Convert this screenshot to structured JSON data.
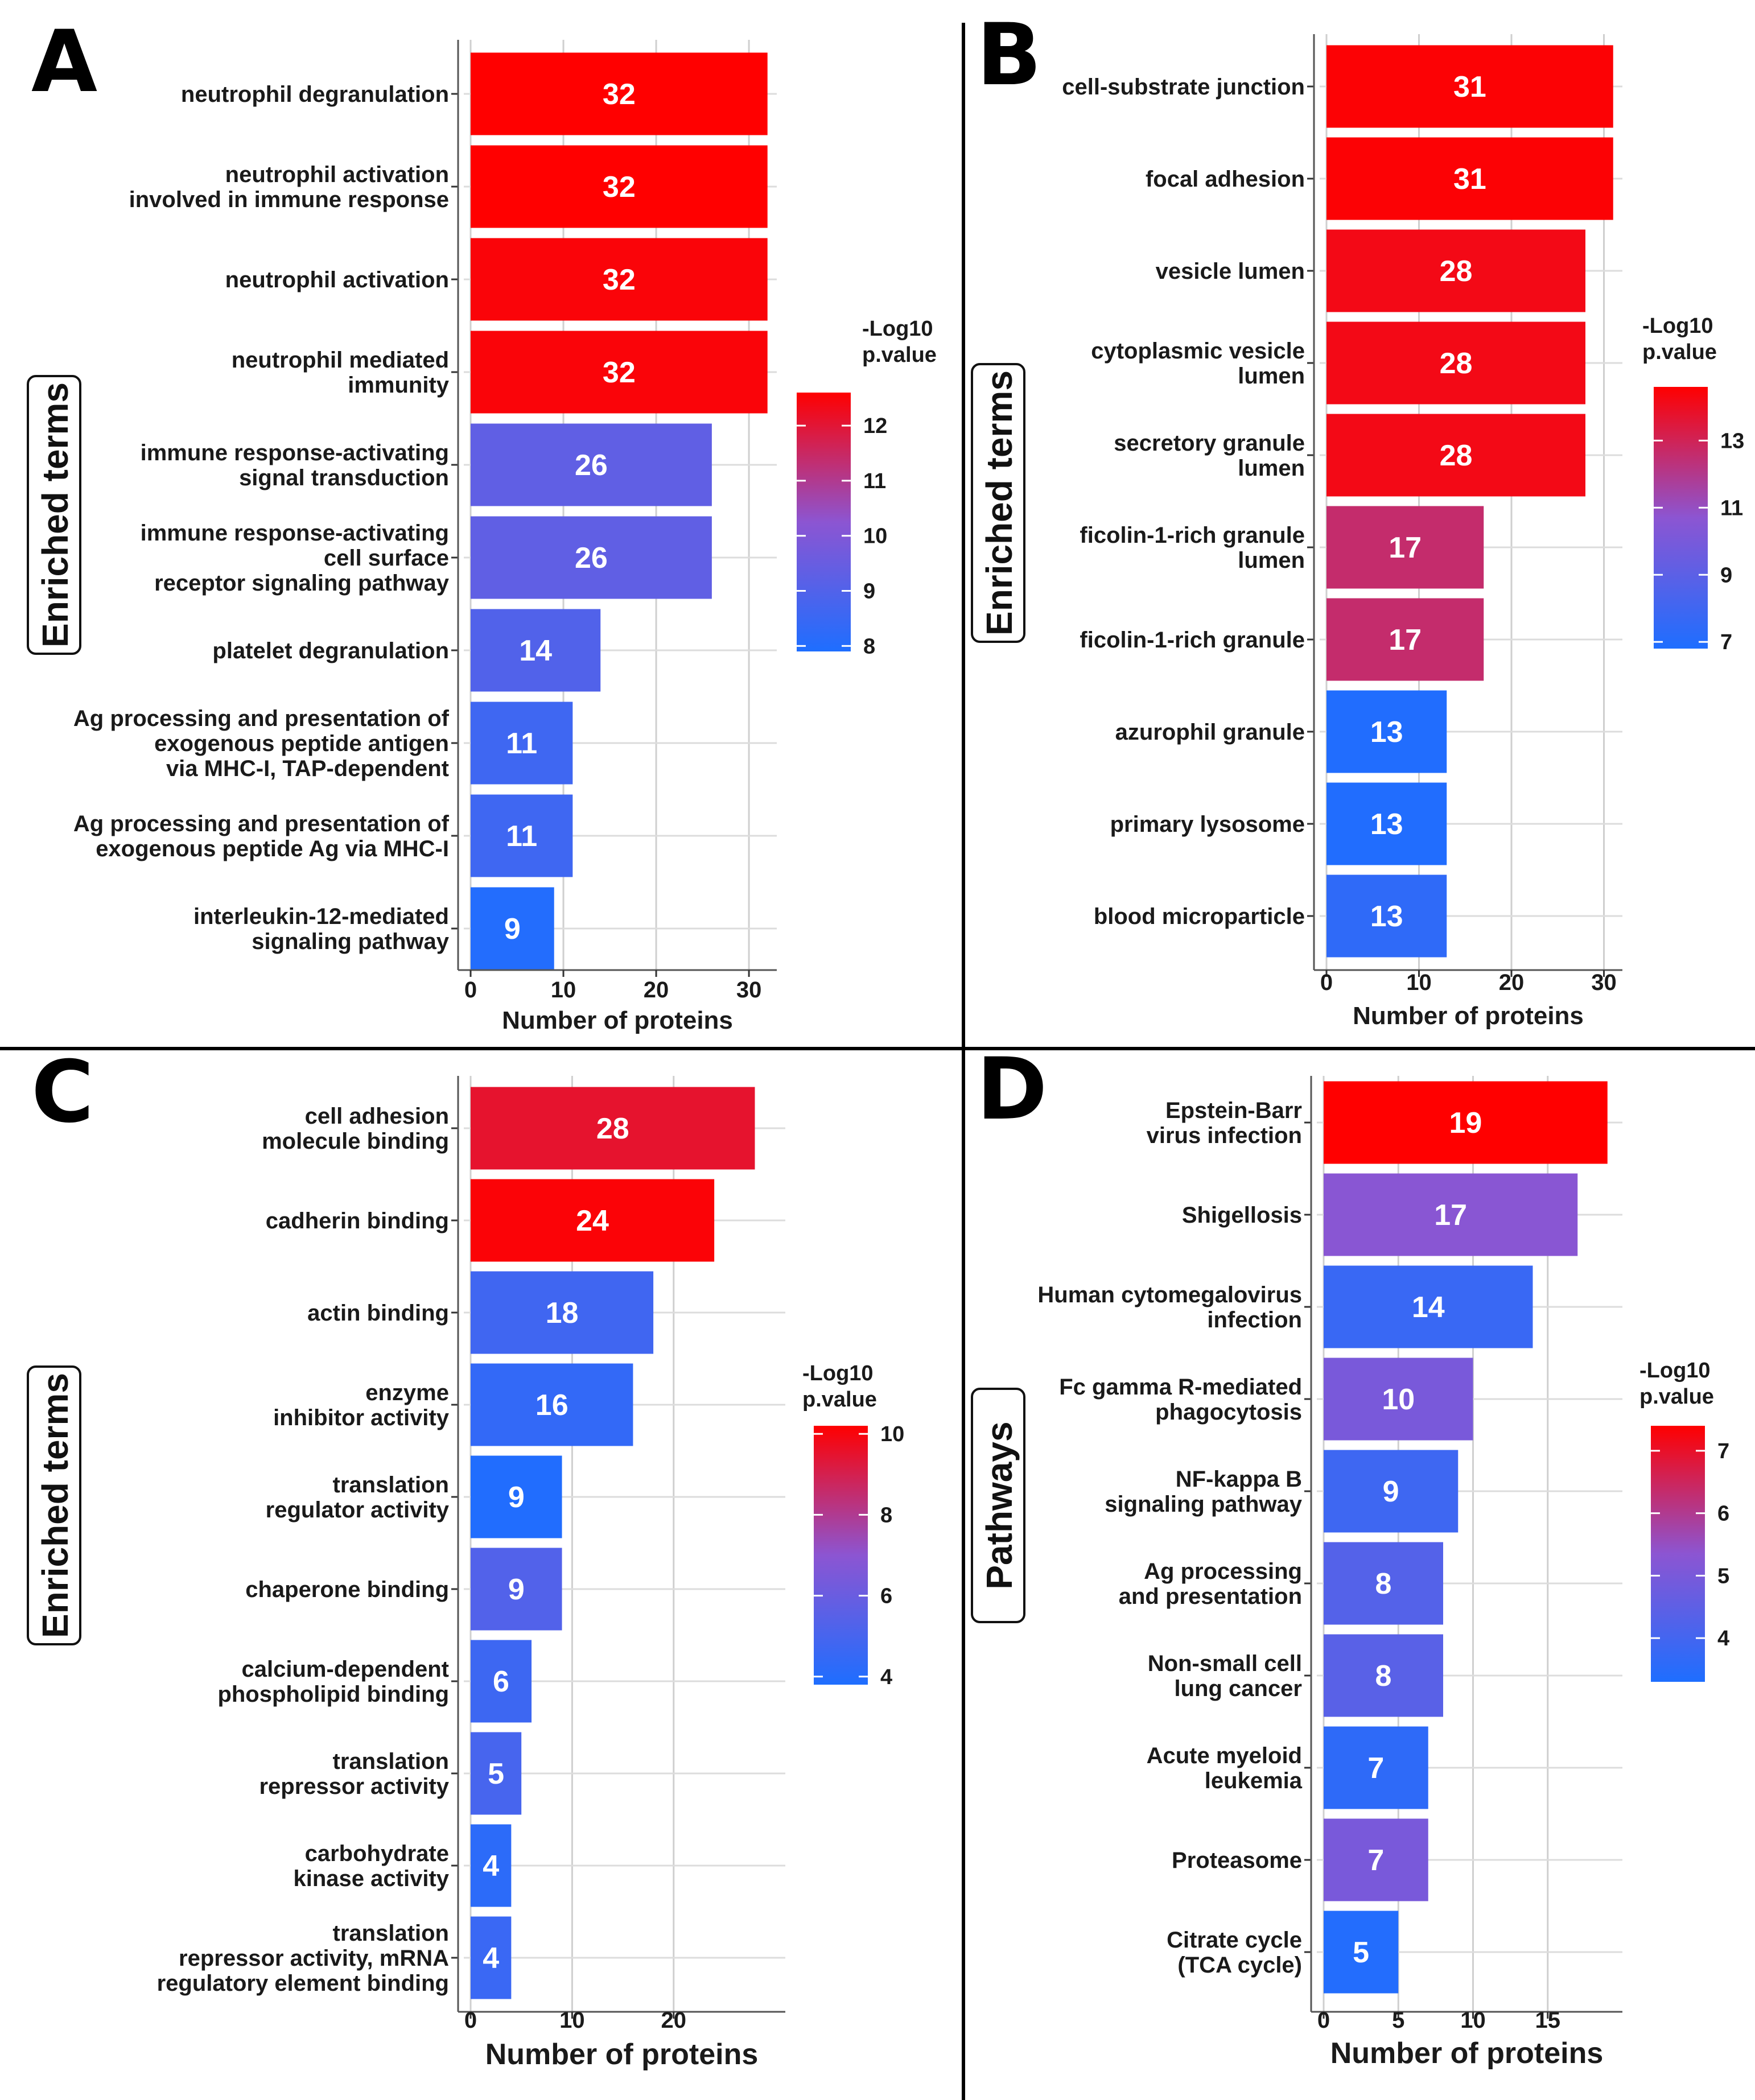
{
  "chart_data": [
    {
      "panel": "A",
      "type": "bar",
      "orientation": "horizontal",
      "ylabel": "Enriched terms",
      "xlabel": "Number of proteins",
      "xlim": [
        0,
        33
      ],
      "xticks": [
        0,
        10,
        20,
        30
      ],
      "legend": {
        "title": [
          "-Log10",
          "p.value"
        ],
        "ticks": [
          12,
          11,
          10,
          9,
          8
        ],
        "range": [
          7.9,
          12.6
        ]
      },
      "bars": [
        {
          "label": [
            "neutrophil degranulation"
          ],
          "value": 32,
          "logp": 12.6
        },
        {
          "label": [
            "neutrophil activation",
            "involved in immune response"
          ],
          "value": 32,
          "logp": 12.6
        },
        {
          "label": [
            "neutrophil activation"
          ],
          "value": 32,
          "logp": 12.5
        },
        {
          "label": [
            "neutrophil mediated",
            "immunity"
          ],
          "value": 32,
          "logp": 12.5
        },
        {
          "label": [
            "immune response-activating",
            "signal transduction"
          ],
          "value": 26,
          "logp": 9.3
        },
        {
          "label": [
            "immune response-activating",
            "cell surface",
            "receptor signaling pathway"
          ],
          "value": 26,
          "logp": 9.3
        },
        {
          "label": [
            "platelet degranulation"
          ],
          "value": 14,
          "logp": 9.0
        },
        {
          "label": [
            "Ag processing and presentation of",
            "exogenous peptide antigen",
            "via MHC-I, TAP-dependent"
          ],
          "value": 11,
          "logp": 8.6
        },
        {
          "label": [
            "Ag processing and presentation of",
            "exogenous peptide Ag via MHC-I"
          ],
          "value": 11,
          "logp": 8.6
        },
        {
          "label": [
            "interleukin-12-mediated",
            "signaling pathway"
          ],
          "value": 9,
          "logp": 8.0
        }
      ]
    },
    {
      "panel": "B",
      "type": "bar",
      "orientation": "horizontal",
      "ylabel": "Enriched terms",
      "xlabel": "Number of proteins",
      "xlim": [
        0,
        32
      ],
      "xticks": [
        0,
        10,
        20,
        30
      ],
      "legend": {
        "title": [
          "-Log10",
          "p.value"
        ],
        "ticks": [
          13,
          11,
          9,
          7
        ],
        "range": [
          6.8,
          14.6
        ]
      },
      "bars": [
        {
          "label": [
            "cell-substrate junction"
          ],
          "value": 31,
          "logp": 14.5
        },
        {
          "label": [
            "focal adhesion"
          ],
          "value": 31,
          "logp": 14.5
        },
        {
          "label": [
            "vesicle lumen"
          ],
          "value": 28,
          "logp": 14.2
        },
        {
          "label": [
            "cytoplasmic vesicle",
            "lumen"
          ],
          "value": 28,
          "logp": 14.2
        },
        {
          "label": [
            "secretory granule",
            "lumen"
          ],
          "value": 28,
          "logp": 14.2
        },
        {
          "label": [
            "ficolin-1-rich granule",
            "lumen"
          ],
          "value": 17,
          "logp": 12.6
        },
        {
          "label": [
            "ficolin-1-rich granule"
          ],
          "value": 17,
          "logp": 12.6
        },
        {
          "label": [
            "azurophil granule"
          ],
          "value": 13,
          "logp": 6.9
        },
        {
          "label": [
            "primary lysosome"
          ],
          "value": 13,
          "logp": 6.9
        },
        {
          "label": [
            "blood microparticle"
          ],
          "value": 13,
          "logp": 7.4
        }
      ]
    },
    {
      "panel": "C",
      "type": "bar",
      "orientation": "horizontal",
      "ylabel": "Enriched terms",
      "xlabel": "Number of proteins",
      "xlim": [
        0,
        31
      ],
      "xticks": [
        0,
        10,
        20
      ],
      "legend": {
        "title": [
          "-Log10",
          "p.value"
        ],
        "ticks": [
          10,
          8,
          6,
          4
        ],
        "range": [
          3.8,
          10.2
        ]
      },
      "bars": [
        {
          "label": [
            "cell adhesion",
            "molecule binding"
          ],
          "value": 28,
          "logp": 9.5
        },
        {
          "label": [
            "cadherin binding"
          ],
          "value": 24,
          "logp": 10.1
        },
        {
          "label": [
            "actin binding"
          ],
          "value": 18,
          "logp": 4.8
        },
        {
          "label": [
            "enzyme",
            "inhibitor activity"
          ],
          "value": 16,
          "logp": 4.4
        },
        {
          "label": [
            "translation",
            "regulator activity"
          ],
          "value": 9,
          "logp": 3.9
        },
        {
          "label": [
            "chaperone binding"
          ],
          "value": 9,
          "logp": 5.3
        },
        {
          "label": [
            "calcium-dependent",
            "phospholipid binding"
          ],
          "value": 6,
          "logp": 4.7
        },
        {
          "label": [
            "translation",
            "repressor activity"
          ],
          "value": 5,
          "logp": 5.0
        },
        {
          "label": [
            "carbohydrate",
            "kinase activity"
          ],
          "value": 4,
          "logp": 4.2
        },
        {
          "label": [
            "translation",
            "repressor activity, mRNA",
            "regulatory element binding"
          ],
          "value": 4,
          "logp": 4.6
        }
      ]
    },
    {
      "panel": "D",
      "type": "bar",
      "orientation": "horizontal",
      "ylabel": "Pathways",
      "xlabel": "Number of proteins",
      "xlim": [
        0,
        20
      ],
      "xticks": [
        0,
        5,
        10,
        15
      ],
      "legend": {
        "title": [
          "-Log10",
          "p.value"
        ],
        "ticks": [
          7,
          6,
          5,
          4
        ],
        "range": [
          3.3,
          7.4
        ]
      },
      "bars": [
        {
          "label": [
            "Epstein-Barr",
            "virus infection"
          ],
          "value": 19,
          "logp": 7.4
        },
        {
          "label": [
            "Shigellosis"
          ],
          "value": 17,
          "logp": 5.3
        },
        {
          "label": [
            "Human cytomegalovirus",
            "infection"
          ],
          "value": 14,
          "logp": 3.8
        },
        {
          "label": [
            "Fc gamma R-mediated",
            "phagocytosis"
          ],
          "value": 10,
          "logp": 5.0
        },
        {
          "label": [
            "NF-kappa B",
            "signaling pathway"
          ],
          "value": 9,
          "logp": 3.9
        },
        {
          "label": [
            "Ag processing",
            "and presentation"
          ],
          "value": 8,
          "logp": 4.3
        },
        {
          "label": [
            "Non-small cell",
            "lung cancer"
          ],
          "value": 8,
          "logp": 4.4
        },
        {
          "label": [
            "Acute myeloid",
            "leukemia"
          ],
          "value": 7,
          "logp": 3.6
        },
        {
          "label": [
            "Proteasome"
          ],
          "value": 7,
          "logp": 5.0
        },
        {
          "label": [
            "Citrate cycle",
            "(TCA cycle)"
          ],
          "value": 5,
          "logp": 3.4
        }
      ]
    }
  ]
}
